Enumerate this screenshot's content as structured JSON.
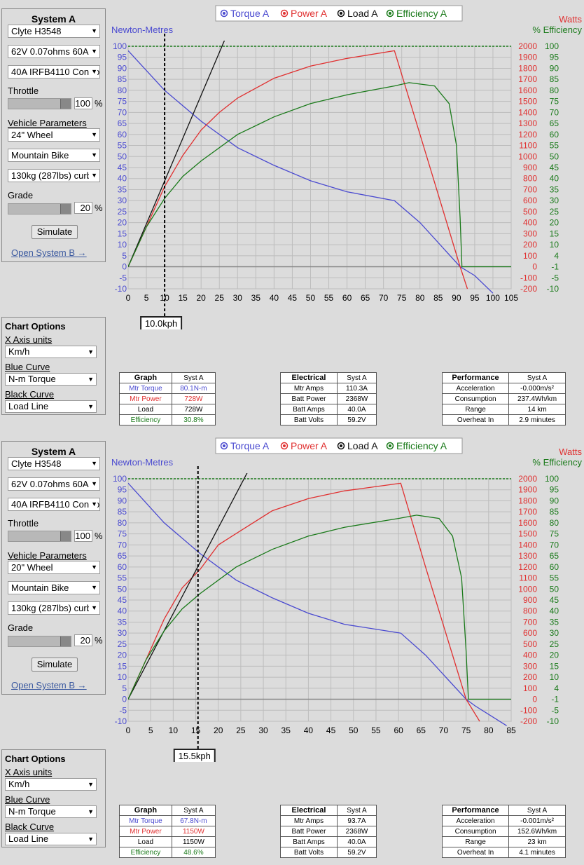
{
  "legend": {
    "torque": "Torque A",
    "power": "Power A",
    "load": "Load A",
    "efficiency": "Efficiency A"
  },
  "axis_titles": {
    "left": "Newton-Metres",
    "right_watts": "Watts",
    "right_eff": "% Efficiency"
  },
  "colors": {
    "torque": "#4a4ad0",
    "power": "#e03030",
    "load": "#111111",
    "efficiency": "#1a7a1a"
  },
  "sims": [
    {
      "system_title": "System A",
      "motor": "Clyte H3548",
      "battery": "62V 0.07ohms 60A",
      "controller": "40A IRFB4110 Controller",
      "throttle_label": "Throttle",
      "throttle_value": "100",
      "pct": "%",
      "vehicle_label": "Vehicle Parameters",
      "wheel": "24\"  Wheel",
      "bike": "Mountain Bike",
      "weight": "130kg (287lbs) curb",
      "grade_label": "Grade",
      "grade_value": "20",
      "simulate": "Simulate",
      "open_b": "Open System B →",
      "options": {
        "title": "Chart Options",
        "x_axis_label": "X Axis units",
        "x_axis": "Km/h",
        "blue_label": "Blue Curve",
        "blue": "N-m Torque",
        "black_label": "Black Curve",
        "black": "Load Line"
      },
      "speed": "10.0kph",
      "graph_table": {
        "headers": [
          "Graph",
          "Syst A"
        ],
        "rows": [
          [
            "Mtr Torque",
            "80.1N-m"
          ],
          [
            "Mtr Power",
            "728W"
          ],
          [
            "Load",
            "728W"
          ],
          [
            "Efficiency",
            "30.8%"
          ]
        ]
      },
      "elec_table": {
        "headers": [
          "Electrical",
          "Syst A"
        ],
        "rows": [
          [
            "Mtr Amps",
            "110.3A"
          ],
          [
            "Batt Power",
            "2368W"
          ],
          [
            "Batt Amps",
            "40.0A"
          ],
          [
            "Batt Volts",
            "59.2V"
          ]
        ]
      },
      "perf_table": {
        "headers": [
          "Performance",
          "Syst A"
        ],
        "rows": [
          [
            "Acceleration",
            "-0.000m/s²"
          ],
          [
            "Consumption",
            "237.4Wh/km"
          ],
          [
            "Range",
            "14 km"
          ],
          [
            "Overheat In",
            "2.9 minutes"
          ]
        ]
      },
      "chart_data": {
        "type": "line",
        "x_ticks": [
          0,
          5,
          10,
          15,
          20,
          25,
          30,
          35,
          40,
          45,
          50,
          55,
          60,
          65,
          70,
          75,
          80,
          85,
          90,
          95,
          100,
          105
        ],
        "xlim": [
          0,
          105
        ],
        "ylim": [
          -10,
          100
        ],
        "y_ticks_left": [
          -10,
          -5,
          0,
          5,
          10,
          15,
          20,
          25,
          30,
          35,
          40,
          45,
          50,
          55,
          60,
          65,
          70,
          75,
          80,
          85,
          90,
          95,
          100
        ],
        "y_ticks_watts": [
          -200,
          -100,
          0,
          100,
          200,
          300,
          400,
          500,
          600,
          700,
          800,
          900,
          1000,
          1100,
          1200,
          1300,
          1400,
          1500,
          1600,
          1700,
          1800,
          1900,
          2000
        ],
        "y_ticks_eff": [
          -10,
          -5,
          -1,
          4,
          10,
          15,
          20,
          25,
          30,
          35,
          40,
          45,
          50,
          55,
          60,
          65,
          70,
          75,
          80,
          85,
          90,
          95,
          100
        ],
        "speed_marker": 10,
        "series": [
          {
            "name": "Torque A",
            "axis": "left",
            "x": [
              0,
              10,
              20,
              30,
              40,
              50,
              60,
              73,
              80,
              91,
              95,
              100
            ],
            "y": [
              98,
              80,
              66,
              54,
              46,
              39,
              34,
              30,
              20,
              0,
              -4,
              -12
            ]
          },
          {
            "name": "Power A",
            "axis": "watts",
            "x": [
              0,
              5,
              10,
              15,
              20,
              25,
              30,
              40,
              50,
              60,
              73,
              80,
              91,
              93
            ],
            "y": [
              0,
              360,
              728,
              1010,
              1240,
              1400,
              1530,
              1710,
              1820,
              1890,
              1960,
              1200,
              0,
              -200
            ]
          },
          {
            "name": "Load A",
            "axis": "left",
            "x": [
              0,
              27
            ],
            "y": [
              0,
              105
            ]
          },
          {
            "name": "Efficiency A",
            "axis": "left",
            "x": [
              0,
              5,
              10,
              15,
              20,
              30,
              40,
              50,
              60,
              73,
              77,
              84,
              88,
              90,
              91,
              91.5,
              92,
              105
            ],
            "y": [
              0,
              18,
              31,
              41,
              48,
              60,
              68,
              74,
              78,
              82,
              83.5,
              82,
              74,
              55,
              22,
              0,
              0,
              0
            ]
          }
        ]
      }
    },
    {
      "system_title": "System A",
      "motor": "Clyte H3548",
      "battery": "62V 0.07ohms 60A",
      "controller": "40A IRFB4110 Controller",
      "throttle_label": "Throttle",
      "throttle_value": "100",
      "pct": "%",
      "vehicle_label": "Vehicle Parameters",
      "wheel": "20\"  Wheel",
      "bike": "Mountain Bike",
      "weight": "130kg (287lbs) curb",
      "grade_label": "Grade",
      "grade_value": "20",
      "simulate": "Simulate",
      "open_b": "Open System B →",
      "options": {
        "title": "Chart Options",
        "x_axis_label": "X Axis units",
        "x_axis": "Km/h",
        "blue_label": "Blue Curve",
        "blue": "N-m Torque",
        "black_label": "Black Curve",
        "black": "Load Line"
      },
      "speed": "15.5kph",
      "graph_table": {
        "headers": [
          "Graph",
          "Syst A"
        ],
        "rows": [
          [
            "Mtr Torque",
            "67.8N-m"
          ],
          [
            "Mtr Power",
            "1150W"
          ],
          [
            "Load",
            "1150W"
          ],
          [
            "Efficiency",
            "48.6%"
          ]
        ]
      },
      "elec_table": {
        "headers": [
          "Electrical",
          "Syst A"
        ],
        "rows": [
          [
            "Mtr Amps",
            "93.7A"
          ],
          [
            "Batt Power",
            "2368W"
          ],
          [
            "Batt Amps",
            "40.0A"
          ],
          [
            "Batt Volts",
            "59.2V"
          ]
        ]
      },
      "perf_table": {
        "headers": [
          "Performance",
          "Syst A"
        ],
        "rows": [
          [
            "Acceleration",
            "-0.001m/s²"
          ],
          [
            "Consumption",
            "152.6Wh/km"
          ],
          [
            "Range",
            "23 km"
          ],
          [
            "Overheat In",
            "4.1 minutes"
          ]
        ]
      },
      "chart_data": {
        "type": "line",
        "x_ticks": [
          0,
          5,
          10,
          15,
          20,
          25,
          30,
          35,
          40,
          45,
          50,
          55,
          60,
          65,
          70,
          75,
          80,
          85
        ],
        "xlim": [
          0,
          85
        ],
        "ylim": [
          -10,
          100
        ],
        "y_ticks_left": [
          -10,
          -5,
          0,
          5,
          10,
          15,
          20,
          25,
          30,
          35,
          40,
          45,
          50,
          55,
          60,
          65,
          70,
          75,
          80,
          85,
          90,
          95,
          100
        ],
        "y_ticks_watts": [
          -200,
          -100,
          0,
          100,
          200,
          300,
          400,
          500,
          600,
          700,
          800,
          900,
          1000,
          1100,
          1200,
          1300,
          1400,
          1500,
          1600,
          1700,
          1800,
          1900,
          2000
        ],
        "y_ticks_eff": [
          -10,
          -5,
          -1,
          4,
          10,
          15,
          20,
          25,
          30,
          35,
          40,
          45,
          50,
          55,
          60,
          65,
          70,
          75,
          80,
          85,
          90,
          95,
          100
        ],
        "speed_marker": 15.5,
        "series": [
          {
            "name": "Torque A",
            "axis": "left",
            "x": [
              0,
              8,
              16,
              24,
              32,
              40,
              48,
              60.5,
              66,
              75,
              77,
              84
            ],
            "y": [
              98,
              80,
              66,
              54,
              46,
              39,
              34,
              30,
              20,
              0,
              -3,
              -12
            ]
          },
          {
            "name": "Power A",
            "axis": "watts",
            "x": [
              0,
              4,
              8,
              12,
              16,
              20,
              25,
              32,
              40,
              48,
              60.5,
              66,
              75,
              78
            ],
            "y": [
              0,
              360,
              728,
              1010,
              1180,
              1400,
              1530,
              1710,
              1820,
              1890,
              1960,
              1200,
              0,
              -200
            ]
          },
          {
            "name": "Load A",
            "axis": "left",
            "x": [
              0,
              27
            ],
            "y": [
              0,
              105
            ]
          },
          {
            "name": "Efficiency A",
            "axis": "left",
            "x": [
              0,
              4,
              8,
              12,
              16,
              24,
              32,
              40,
              48,
              60,
              64,
              69,
              72,
              74,
              75,
              75.5,
              76,
              85
            ],
            "y": [
              0,
              18,
              31,
              41,
              48,
              60,
              68,
              74,
              78,
              82,
              83.5,
              82,
              74,
              55,
              22,
              0,
              0,
              0
            ]
          }
        ]
      }
    }
  ]
}
